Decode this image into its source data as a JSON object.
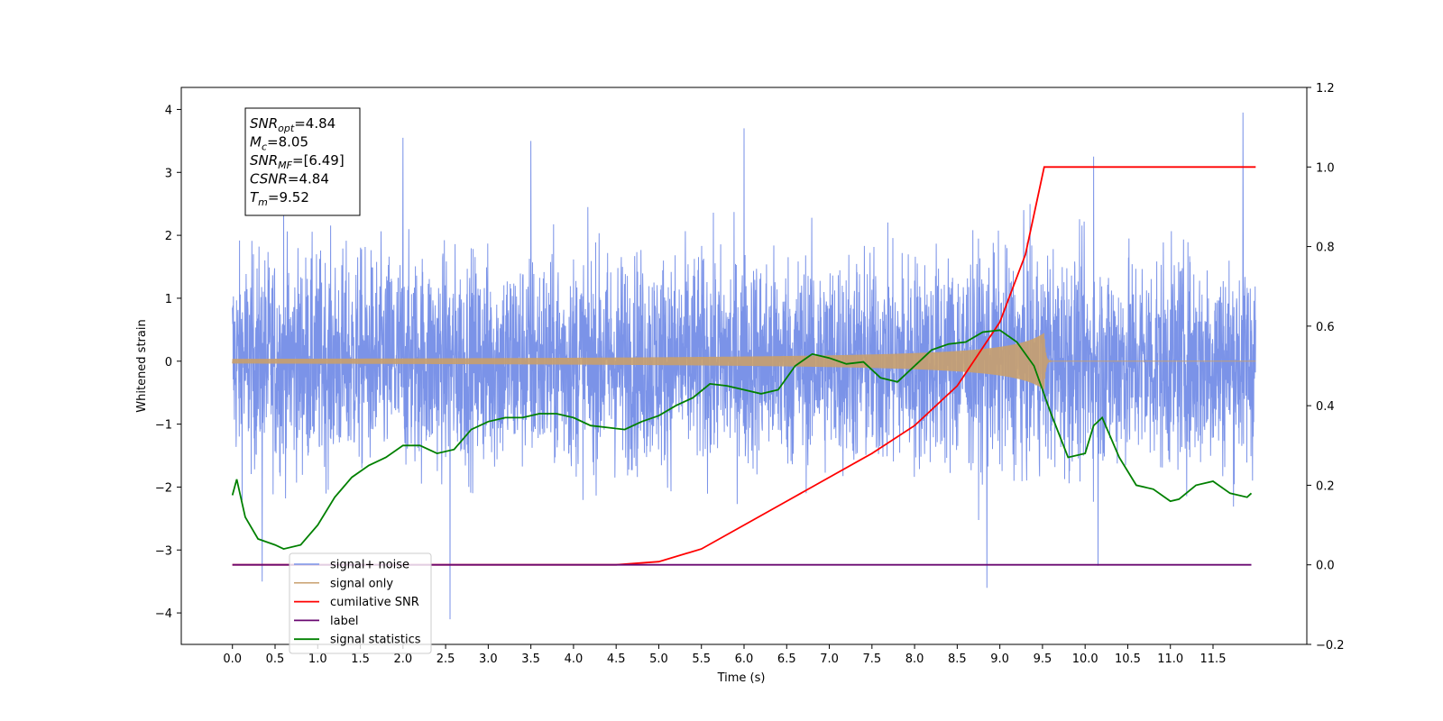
{
  "chart_data": {
    "type": "line",
    "xlabel": "Time (s)",
    "ylabel": "Whitened strain",
    "xlim": [
      -0.6,
      12.6
    ],
    "ylim": [
      -4.5,
      4.35
    ],
    "y2lim": [
      -0.2,
      1.2
    ],
    "x_ticks": [
      "0.0",
      "0.5",
      "1.0",
      "1.5",
      "2.0",
      "2.5",
      "3.0",
      "3.5",
      "4.0",
      "4.5",
      "5.0",
      "5.5",
      "6.0",
      "6.5",
      "7.0",
      "7.5",
      "8.0",
      "8.5",
      "9.0",
      "9.5",
      "10.0",
      "10.5",
      "11.0",
      "11.5"
    ],
    "y_ticks": [
      "−4",
      "−3",
      "−2",
      "−1",
      "0",
      "1",
      "2",
      "3",
      "4"
    ],
    "y2_ticks": [
      "−0.2",
      "0.0",
      "0.2",
      "0.4",
      "0.6",
      "0.8",
      "1.0",
      "1.2"
    ],
    "stats_box": [
      {
        "base": "SNR",
        "sub": "opt",
        "value": "=4.84"
      },
      {
        "base": "M",
        "sub": "c",
        "value": "=8.05"
      },
      {
        "base": "SNR",
        "sub": "MF",
        "value": "=[6.49]"
      },
      {
        "base": "CSNR",
        "sub": "",
        "value": "=4.84"
      },
      {
        "base": "T",
        "sub": "m",
        "value": "=9.52"
      }
    ],
    "series": [
      {
        "name": "signal+ noise",
        "color": "#7b93e8",
        "axis": "left",
        "kind": "noise",
        "x_range": [
          0,
          12
        ],
        "sigma": 0.85,
        "peaks": [
          [
            0.35,
            -3.5
          ],
          [
            0.6,
            2.5
          ],
          [
            2.0,
            3.55
          ],
          [
            2.55,
            -4.1
          ],
          [
            3.5,
            3.5
          ],
          [
            6.0,
            3.7
          ],
          [
            8.85,
            -3.6
          ],
          [
            11.85,
            3.95
          ],
          [
            10.1,
            3.25
          ],
          [
            10.15,
            -3.25
          ]
        ]
      },
      {
        "name": "signal only",
        "color": "#c8a06e",
        "axis": "left",
        "kind": "chirp",
        "t_merger": 9.52,
        "peak_amplitude": 0.45
      },
      {
        "name": "cumilative SNR",
        "color": "#ff0000",
        "axis": "right",
        "x": [
          0,
          4.5,
          5.0,
          5.5,
          6.0,
          6.5,
          7.0,
          7.5,
          8.0,
          8.5,
          9.0,
          9.3,
          9.52,
          12.0
        ],
        "y": [
          0,
          0,
          0.008,
          0.04,
          0.1,
          0.16,
          0.22,
          0.28,
          0.35,
          0.45,
          0.61,
          0.78,
          1.0,
          1.0
        ]
      },
      {
        "name": "label",
        "color": "#6a0a72",
        "axis": "right",
        "x": [
          0,
          11.95
        ],
        "y": [
          0,
          0
        ]
      },
      {
        "name": "signal statistics",
        "color": "#008000",
        "axis": "right",
        "x": [
          0,
          0.05,
          0.15,
          0.3,
          0.5,
          0.6,
          0.8,
          1.0,
          1.2,
          1.4,
          1.6,
          1.8,
          2.0,
          2.2,
          2.4,
          2.6,
          2.8,
          3.0,
          3.2,
          3.4,
          3.6,
          3.8,
          4.0,
          4.2,
          4.4,
          4.6,
          4.8,
          5.0,
          5.2,
          5.4,
          5.6,
          5.8,
          6.0,
          6.2,
          6.4,
          6.6,
          6.8,
          7.0,
          7.2,
          7.4,
          7.6,
          7.8,
          8.0,
          8.2,
          8.4,
          8.6,
          8.8,
          9.0,
          9.2,
          9.4,
          9.6,
          9.8,
          10.0,
          10.1,
          10.2,
          10.4,
          10.6,
          10.8,
          11.0,
          11.1,
          11.3,
          11.5,
          11.7,
          11.9,
          11.95
        ],
        "y": [
          0.175,
          0.215,
          0.12,
          0.065,
          0.05,
          0.04,
          0.05,
          0.1,
          0.17,
          0.22,
          0.25,
          0.27,
          0.3,
          0.3,
          0.28,
          0.29,
          0.34,
          0.36,
          0.37,
          0.37,
          0.38,
          0.38,
          0.37,
          0.35,
          0.345,
          0.34,
          0.36,
          0.375,
          0.4,
          0.42,
          0.455,
          0.45,
          0.44,
          0.43,
          0.44,
          0.5,
          0.53,
          0.52,
          0.505,
          0.51,
          0.47,
          0.46,
          0.5,
          0.54,
          0.555,
          0.56,
          0.585,
          0.59,
          0.56,
          0.5,
          0.38,
          0.27,
          0.28,
          0.35,
          0.37,
          0.27,
          0.2,
          0.19,
          0.16,
          0.165,
          0.2,
          0.21,
          0.18,
          0.17,
          0.18
        ]
      }
    ]
  }
}
